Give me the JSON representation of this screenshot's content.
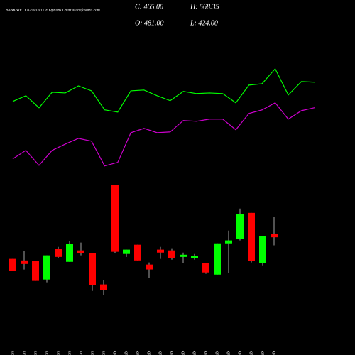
{
  "chart_data": {
    "type": "candlestick",
    "title": "BANKNIFTY 62500.00 CE Options Chart Munafasutra.com",
    "stats": {
      "close": "C: 465.00",
      "high": "H: 568.35",
      "open": "O: 481.00",
      "low": "L: 424.00"
    },
    "categories": [
      "21 Jan",
      "22 Jan",
      "23 Jan",
      "24 Jan",
      "27 Jan",
      "28 Jan",
      "29 Jan",
      "30 Jan",
      "31 Jan",
      "01 Feb",
      "03 Feb",
      "04 Feb",
      "05 Feb",
      "06 Feb",
      "07 Feb",
      "10 Feb",
      "11 Feb",
      "12 Feb",
      "13 Feb",
      "14 Feb",
      "17 Feb",
      "18 Feb",
      "19 Feb",
      "20 Feb"
    ],
    "open": [
      355,
      347,
      344,
      250,
      405,
      340,
      398,
      384,
      225,
      730,
      380,
      427,
      326,
      402,
      398,
      365,
      358,
      333,
      275,
      434,
      456,
      589,
      333,
      481
    ],
    "high": [
      355,
      394,
      344,
      373,
      416,
      445,
      438,
      384,
      246,
      730,
      402,
      427,
      337,
      416,
      409,
      387,
      380,
      333,
      434,
      499,
      611,
      589,
      470,
      568.35
    ],
    "low": [
      293,
      301,
      243,
      236,
      358,
      340,
      373,
      192,
      171,
      384,
      365,
      347,
      257,
      355,
      351,
      333,
      351,
      279,
      275,
      282,
      449,
      337,
      322,
      424
    ],
    "close": [
      293,
      329,
      243,
      373,
      365,
      430,
      384,
      221,
      196,
      391,
      402,
      347,
      301,
      387,
      358,
      376,
      369,
      286,
      434,
      449,
      582,
      344,
      470,
      465
    ],
    "up_color": "#00ff00",
    "down_color": "#ff0000",
    "lines": [
      {
        "color": "#00ff00",
        "values": [
          1156,
          1185,
          1124,
          1203,
          1199,
          1235,
          1210,
          1113,
          1102,
          1210,
          1214,
          1185,
          1160,
          1207,
          1196,
          1199,
          1196,
          1149,
          1239,
          1246,
          1322,
          1189,
          1257,
          1254
        ]
      },
      {
        "color": "#cc00cc",
        "values": [
          864,
          907,
          831,
          907,
          939,
          968,
          954,
          828,
          846,
          997,
          1019,
          997,
          1001,
          1059,
          1055,
          1066,
          1066,
          1012,
          1095,
          1113,
          1149,
          1066,
          1109,
          1124
        ]
      }
    ],
    "ylim": [
      -134,
      1672
    ]
  }
}
